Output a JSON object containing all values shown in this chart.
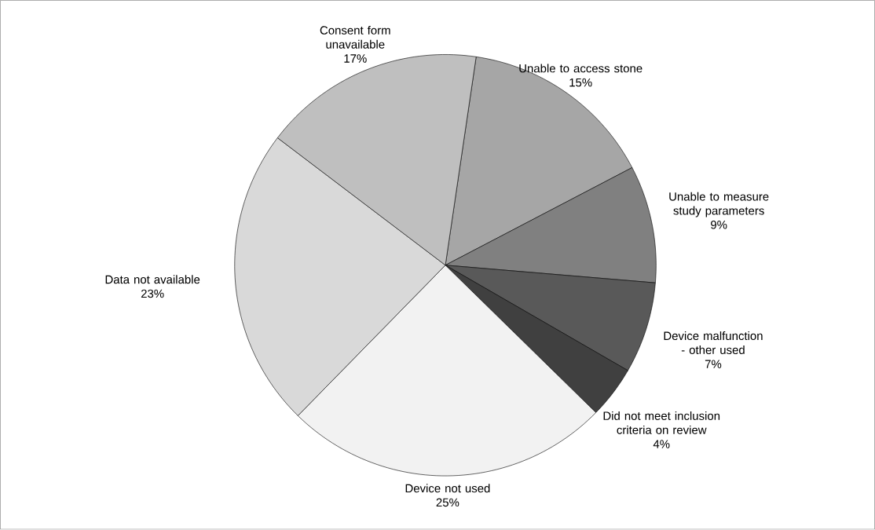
{
  "chart_data": {
    "type": "pie",
    "categories": [
      "Unable to access stone",
      "Unable to measure study parameters",
      "Device malfunction - other used",
      "Did not meet inclusion criteria on review",
      "Device not used",
      "Data not available",
      "Consent form unavailable"
    ],
    "values": [
      15,
      9,
      7,
      4,
      25,
      23,
      17
    ],
    "value_labels": [
      "15%",
      "9%",
      "7%",
      "4%",
      "25%",
      "23%",
      "17%"
    ],
    "colors": [
      "#a6a6a6",
      "#808080",
      "#595959",
      "#404040",
      "#f2f2f2",
      "#d9d9d9",
      "#bfbfbf"
    ]
  }
}
